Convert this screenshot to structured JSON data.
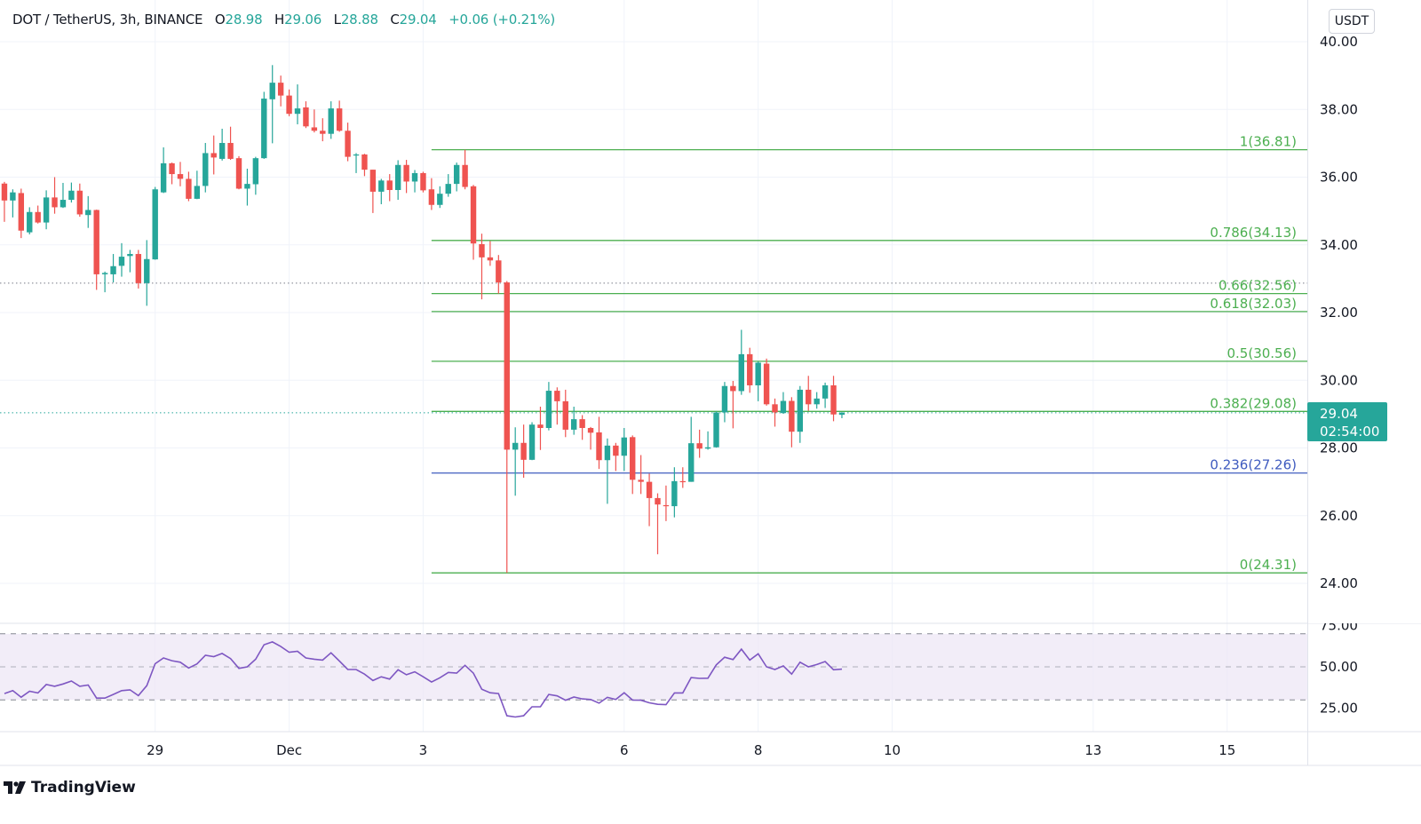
{
  "legend": {
    "symbol": "DOT / TetherUS, 3h, BINANCE",
    "open_label": "O",
    "open": "28.98",
    "high_label": "H",
    "high": "29.06",
    "low_label": "L",
    "low": "28.88",
    "close_label": "C",
    "close": "29.04",
    "change": "+0.06 (+0.21%)"
  },
  "currency_button": "USDT",
  "price_tag": {
    "price": "29.04",
    "countdown": "02:54:00"
  },
  "branding": {
    "name": "TradingView",
    "icon": "tradingview-logo-icon"
  },
  "colors": {
    "up": "#26a69a",
    "down": "#ef5350",
    "fib": "#4caf50",
    "fib_0236": "#3f5bbf",
    "rsi": "#7e57c2",
    "rsi_band": "#ede7f6"
  },
  "chart_data": {
    "type": "candlestick",
    "interval": "3h",
    "y_axis": {
      "range": [
        23.0,
        40.7
      ],
      "ticks": [
        "24.00",
        "26.00",
        "28.00",
        "30.00",
        "32.00",
        "34.00",
        "36.00",
        "38.00",
        "40.00"
      ],
      "grid": true
    },
    "x_axis": {
      "ticks": [
        {
          "label": "29",
          "t": "11-29 00"
        },
        {
          "label": "Dec",
          "t": "12-01 00"
        },
        {
          "label": "3",
          "t": "12-03 00"
        },
        {
          "label": "6",
          "t": "12-06 00"
        },
        {
          "label": "8",
          "t": "12-08 00"
        },
        {
          "label": "10",
          "t": "12-10 00"
        },
        {
          "label": "13",
          "t": "12-13 00"
        },
        {
          "label": "15",
          "t": "12-15 00"
        }
      ],
      "grid": true
    },
    "candle_fields": [
      "t",
      "open",
      "high",
      "low",
      "close"
    ],
    "candles": [
      [
        "11-26 18",
        35.81,
        35.86,
        34.68,
        35.31
      ],
      [
        "11-26 21",
        35.31,
        35.64,
        34.81,
        35.55
      ],
      [
        "11-27 00",
        35.53,
        35.66,
        34.2,
        34.42
      ],
      [
        "11-27 03",
        34.37,
        35.11,
        34.31,
        34.97
      ],
      [
        "11-27 06",
        34.97,
        35.16,
        34.63,
        34.66
      ],
      [
        "11-27 09",
        34.66,
        35.61,
        34.46,
        35.4
      ],
      [
        "11-27 12",
        35.4,
        36.0,
        34.92,
        35.11
      ],
      [
        "11-27 15",
        35.11,
        35.83,
        35.09,
        35.33
      ],
      [
        "11-27 18",
        35.33,
        35.84,
        35.25,
        35.6
      ],
      [
        "11-27 21",
        35.6,
        35.81,
        34.83,
        34.9
      ],
      [
        "11-28 00",
        34.88,
        35.44,
        34.5,
        35.03
      ],
      [
        "11-28 03",
        35.03,
        35.04,
        32.67,
        33.13
      ],
      [
        "11-28 06",
        33.13,
        33.21,
        32.6,
        33.17
      ],
      [
        "11-28 09",
        33.13,
        33.73,
        32.89,
        33.37
      ],
      [
        "11-28 12",
        33.38,
        34.05,
        33.06,
        33.65
      ],
      [
        "11-28 15",
        33.67,
        33.85,
        33.19,
        33.73
      ],
      [
        "11-28 18",
        33.73,
        33.85,
        32.71,
        32.87
      ],
      [
        "11-28 21",
        32.87,
        34.14,
        32.2,
        33.58
      ],
      [
        "11-29 00",
        33.57,
        35.71,
        33.56,
        35.64
      ],
      [
        "11-29 03",
        35.55,
        36.88,
        35.53,
        36.41
      ],
      [
        "11-29 06",
        36.41,
        36.43,
        35.79,
        36.09
      ],
      [
        "11-29 09",
        36.09,
        36.45,
        35.73,
        35.95
      ],
      [
        "11-29 12",
        35.95,
        36.16,
        35.29,
        35.36
      ],
      [
        "11-29 15",
        35.36,
        36.19,
        35.35,
        35.74
      ],
      [
        "11-29 18",
        35.74,
        37.01,
        35.55,
        36.71
      ],
      [
        "11-29 21",
        36.71,
        37.23,
        36.08,
        36.58
      ],
      [
        "11-30 00",
        36.54,
        37.43,
        36.49,
        37.01
      ],
      [
        "11-30 03",
        37.01,
        37.49,
        36.51,
        36.54
      ],
      [
        "11-30 06",
        36.56,
        36.62,
        35.64,
        35.66
      ],
      [
        "11-30 09",
        35.66,
        36.25,
        35.16,
        35.8
      ],
      [
        "11-30 12",
        35.79,
        36.6,
        35.48,
        36.56
      ],
      [
        "11-30 15",
        36.56,
        38.52,
        36.54,
        38.32
      ],
      [
        "11-30 18",
        38.3,
        39.31,
        37.0,
        38.79
      ],
      [
        "11-30 21",
        38.79,
        39.0,
        38.09,
        38.41
      ],
      [
        "12-01 00",
        38.41,
        38.59,
        37.8,
        37.87
      ],
      [
        "12-01 03",
        37.87,
        38.74,
        37.56,
        38.03
      ],
      [
        "12-01 06",
        38.06,
        38.24,
        37.45,
        37.5
      ],
      [
        "12-01 09",
        37.47,
        38.0,
        37.32,
        37.37
      ],
      [
        "12-01 12",
        37.37,
        37.74,
        37.06,
        37.28
      ],
      [
        "12-01 15",
        37.28,
        38.24,
        37.13,
        38.03
      ],
      [
        "12-01 18",
        38.03,
        38.26,
        37.34,
        37.37
      ],
      [
        "12-01 21",
        37.37,
        37.61,
        36.47,
        36.6
      ],
      [
        "12-02 00",
        36.64,
        36.71,
        36.12,
        36.67
      ],
      [
        "12-02 03",
        36.67,
        36.69,
        36.03,
        36.22
      ],
      [
        "12-02 06",
        36.22,
        36.22,
        34.94,
        35.57
      ],
      [
        "12-02 09",
        35.57,
        35.95,
        35.2,
        35.9
      ],
      [
        "12-02 12",
        35.9,
        36.09,
        35.29,
        35.62
      ],
      [
        "12-02 15",
        35.62,
        36.5,
        35.33,
        36.36
      ],
      [
        "12-02 18",
        36.36,
        36.51,
        35.53,
        35.87
      ],
      [
        "12-02 21",
        35.87,
        36.21,
        35.55,
        36.12
      ],
      [
        "12-03 00",
        36.12,
        36.16,
        35.55,
        35.61
      ],
      [
        "12-03 03",
        35.64,
        35.97,
        35.03,
        35.18
      ],
      [
        "12-03 06",
        35.18,
        35.73,
        35.09,
        35.51
      ],
      [
        "12-03 09",
        35.51,
        36.09,
        35.42,
        35.8
      ],
      [
        "12-03 12",
        35.8,
        36.43,
        35.58,
        36.36
      ],
      [
        "12-03 15",
        36.36,
        36.81,
        35.64,
        35.71
      ],
      [
        "12-03 18",
        35.73,
        35.77,
        33.56,
        34.04
      ],
      [
        "12-03 21",
        34.02,
        34.33,
        32.39,
        33.63
      ],
      [
        "12-04 00",
        33.63,
        34.11,
        33.38,
        33.54
      ],
      [
        "12-04 03",
        33.54,
        33.7,
        32.56,
        32.89
      ],
      [
        "12-04 06",
        32.89,
        32.93,
        24.31,
        27.95
      ],
      [
        "12-04 09",
        27.95,
        28.61,
        26.59,
        28.15
      ],
      [
        "12-04 12",
        28.15,
        28.69,
        27.12,
        27.65
      ],
      [
        "12-04 15",
        27.65,
        28.76,
        27.64,
        28.69
      ],
      [
        "12-04 18",
        28.69,
        29.22,
        27.94,
        28.59
      ],
      [
        "12-04 21",
        28.59,
        29.95,
        28.52,
        29.69
      ],
      [
        "12-05 00",
        29.69,
        29.79,
        28.69,
        29.38
      ],
      [
        "12-05 03",
        29.38,
        29.72,
        28.32,
        28.54
      ],
      [
        "12-05 06",
        28.54,
        29.22,
        28.39,
        28.85
      ],
      [
        "12-05 09",
        28.85,
        28.97,
        28.24,
        28.59
      ],
      [
        "12-05 12",
        28.59,
        28.62,
        27.95,
        28.45
      ],
      [
        "12-05 15",
        28.46,
        28.92,
        27.38,
        27.64
      ],
      [
        "12-05 18",
        27.64,
        28.28,
        26.35,
        28.07
      ],
      [
        "12-05 21",
        28.07,
        28.15,
        27.32,
        27.77
      ],
      [
        "12-06 00",
        27.77,
        28.59,
        27.32,
        28.31
      ],
      [
        "12-06 03",
        28.32,
        28.37,
        26.64,
        27.06
      ],
      [
        "12-06 06",
        27.06,
        27.79,
        26.64,
        27.0
      ],
      [
        "12-06 09",
        27.0,
        27.24,
        25.69,
        26.52
      ],
      [
        "12-06 12",
        26.52,
        26.66,
        24.86,
        26.33
      ],
      [
        "12-06 15",
        26.31,
        26.89,
        25.84,
        26.28
      ],
      [
        "12-06 18",
        26.28,
        27.43,
        25.95,
        27.02
      ],
      [
        "12-06 21",
        27.02,
        27.43,
        26.82,
        27.0
      ],
      [
        "12-07 00",
        27.0,
        28.92,
        27.0,
        28.14
      ],
      [
        "12-07 03",
        28.14,
        28.54,
        27.71,
        27.98
      ],
      [
        "12-07 06",
        27.98,
        28.49,
        27.95,
        28.02
      ],
      [
        "12-07 09",
        28.02,
        29.08,
        28.01,
        29.05
      ],
      [
        "12-07 12",
        29.05,
        29.95,
        28.76,
        29.83
      ],
      [
        "12-07 15",
        29.83,
        29.98,
        28.58,
        29.68
      ],
      [
        "12-07 18",
        29.68,
        31.49,
        29.57,
        30.77
      ],
      [
        "12-07 21",
        30.77,
        30.96,
        29.63,
        29.85
      ],
      [
        "12-08 00",
        29.85,
        30.55,
        29.38,
        30.52
      ],
      [
        "12-08 03",
        30.49,
        30.64,
        29.25,
        29.29
      ],
      [
        "12-08 06",
        29.29,
        29.46,
        28.63,
        29.05
      ],
      [
        "12-08 09",
        29.03,
        29.65,
        29.01,
        29.39
      ],
      [
        "12-08 12",
        29.39,
        29.5,
        28.02,
        28.48
      ],
      [
        "12-08 15",
        28.48,
        29.83,
        28.15,
        29.72
      ],
      [
        "12-08 18",
        29.72,
        30.13,
        29.1,
        29.29
      ],
      [
        "12-08 21",
        29.29,
        29.65,
        29.16,
        29.46
      ],
      [
        "12-09 00",
        29.46,
        29.93,
        29.18,
        29.85
      ],
      [
        "12-09 03",
        29.85,
        30.13,
        28.79,
        28.99
      ],
      [
        "12-09 06",
        28.98,
        29.06,
        28.88,
        29.04
      ]
    ],
    "current_price": 29.04,
    "reference_line": 32.87,
    "fibonacci": {
      "start_t": "12-03 03",
      "levels": [
        {
          "label": "1(36.81)",
          "ratio": 1,
          "price": 36.81
        },
        {
          "label": "0.786(34.13)",
          "ratio": 0.786,
          "price": 34.13
        },
        {
          "label": "0.66(32.56)",
          "ratio": 0.66,
          "price": 32.56
        },
        {
          "label": "0.618(32.03)",
          "ratio": 0.618,
          "price": 32.03
        },
        {
          "label": "0.5(30.56)",
          "ratio": 0.5,
          "price": 30.56
        },
        {
          "label": "0.382(29.08)",
          "ratio": 0.382,
          "price": 29.08
        },
        {
          "label": "0.236(27.26)",
          "ratio": 0.236,
          "price": 27.26,
          "blue": true
        },
        {
          "label": "0(24.31)",
          "ratio": 0,
          "price": 24.31
        }
      ]
    },
    "rsi": {
      "ticks": [
        "75.00",
        "50.00",
        "25.00"
      ],
      "bands": [
        70,
        50,
        30
      ],
      "values": [
        33.8,
        35.6,
        31.6,
        35.2,
        34.2,
        39.3,
        38.2,
        39.6,
        41.4,
        38.2,
        39.0,
        31.1,
        31.1,
        33.3,
        35.6,
        36.1,
        32.6,
        38.6,
        51.9,
        55.4,
        53.7,
        52.8,
        49.3,
        51.8,
        57.0,
        56.2,
        58.1,
        55.0,
        49.1,
        50.0,
        54.6,
        63.4,
        65.1,
        62.3,
        58.8,
        59.4,
        55.4,
        54.6,
        54.1,
        58.5,
        53.5,
        48.4,
        48.4,
        45.6,
        41.7,
        44.0,
        42.6,
        48.2,
        45.2,
        47.0,
        44.0,
        40.8,
        43.4,
        46.6,
        46.2,
        50.9,
        46.2,
        36.4,
        34.3,
        33.8,
        20.4,
        19.6,
        20.4,
        25.8,
        25.8,
        33.3,
        32.4,
        29.8,
        31.7,
        30.6,
        30.2,
        28.0,
        31.5,
        30.2,
        34.3,
        29.9,
        29.8,
        28.2,
        27.3,
        27.1,
        34.2,
        34.2,
        43.5,
        43.0,
        43.1,
        51.2,
        55.8,
        54.4,
        60.7,
        54.1,
        57.9,
        50.0,
        48.4,
        50.6,
        45.6,
        52.8,
        50.0,
        51.4,
        53.2,
        48.2,
        48.6
      ]
    }
  }
}
